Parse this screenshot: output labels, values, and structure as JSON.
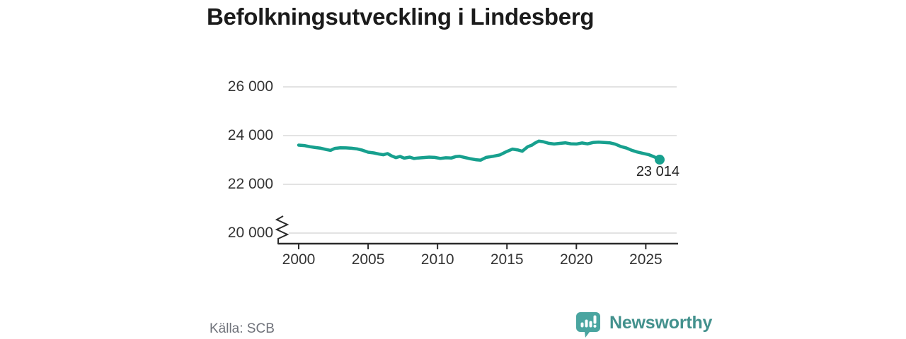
{
  "title": "Befolkningsutveckling i Lindesberg",
  "source_note": "Källa: SCB",
  "brand": {
    "wordmark": "Newsworthy"
  },
  "colors": {
    "line": "#17a08e",
    "gridline": "#e3e3e3",
    "axis_line": "#2b2b2b",
    "axis_text": "#333333",
    "title_text": "#1b1b1b",
    "muted_text": "#6f727a",
    "brand_icon": "#4aa5a0",
    "brand_text": "#43918d"
  },
  "chart_data": {
    "type": "line",
    "title": "Befolkningsutveckling i Lindesberg",
    "xlabel": "",
    "ylabel": "",
    "grid": "horizontal",
    "legend": "none",
    "axis_break_at_bottom": true,
    "xlim": [
      2000,
      2026
    ],
    "ylim": [
      20000,
      26000
    ],
    "x_ticks": [
      {
        "value": 2000,
        "label": "2000"
      },
      {
        "value": 2005,
        "label": "2005"
      },
      {
        "value": 2010,
        "label": "2010"
      },
      {
        "value": 2015,
        "label": "2015"
      },
      {
        "value": 2020,
        "label": "2020"
      },
      {
        "value": 2025,
        "label": "2025"
      }
    ],
    "y_ticks": [
      {
        "value": 26000,
        "label": "26 000"
      },
      {
        "value": 24000,
        "label": "24 000"
      },
      {
        "value": 22000,
        "label": "22 000"
      },
      {
        "value": 20000,
        "label": "20 000"
      }
    ],
    "line_color": "#17a08e",
    "series": [
      {
        "name": "Lindesberg",
        "points": [
          [
            2000.0,
            23610
          ],
          [
            2000.4,
            23590
          ],
          [
            2000.8,
            23545
          ],
          [
            2001.2,
            23510
          ],
          [
            2001.6,
            23480
          ],
          [
            2002.0,
            23425
          ],
          [
            2002.3,
            23395
          ],
          [
            2002.6,
            23475
          ],
          [
            2003.0,
            23500
          ],
          [
            2003.4,
            23495
          ],
          [
            2003.8,
            23480
          ],
          [
            2004.2,
            23455
          ],
          [
            2004.6,
            23400
          ],
          [
            2005.0,
            23320
          ],
          [
            2005.4,
            23290
          ],
          [
            2005.8,
            23240
          ],
          [
            2006.1,
            23215
          ],
          [
            2006.4,
            23260
          ],
          [
            2006.7,
            23165
          ],
          [
            2007.0,
            23095
          ],
          [
            2007.3,
            23145
          ],
          [
            2007.6,
            23075
          ],
          [
            2008.0,
            23115
          ],
          [
            2008.3,
            23060
          ],
          [
            2008.6,
            23080
          ],
          [
            2009.0,
            23100
          ],
          [
            2009.4,
            23115
          ],
          [
            2009.8,
            23105
          ],
          [
            2010.2,
            23065
          ],
          [
            2010.6,
            23090
          ],
          [
            2011.0,
            23080
          ],
          [
            2011.3,
            23135
          ],
          [
            2011.6,
            23150
          ],
          [
            2012.0,
            23095
          ],
          [
            2012.4,
            23045
          ],
          [
            2012.8,
            23005
          ],
          [
            2013.1,
            22990
          ],
          [
            2013.5,
            23105
          ],
          [
            2014.0,
            23150
          ],
          [
            2014.5,
            23210
          ],
          [
            2015.0,
            23350
          ],
          [
            2015.4,
            23445
          ],
          [
            2015.8,
            23410
          ],
          [
            2016.1,
            23360
          ],
          [
            2016.5,
            23545
          ],
          [
            2016.8,
            23610
          ],
          [
            2017.0,
            23690
          ],
          [
            2017.3,
            23775
          ],
          [
            2017.6,
            23750
          ],
          [
            2018.0,
            23685
          ],
          [
            2018.4,
            23655
          ],
          [
            2018.8,
            23680
          ],
          [
            2019.2,
            23705
          ],
          [
            2019.6,
            23665
          ],
          [
            2020.0,
            23655
          ],
          [
            2020.4,
            23700
          ],
          [
            2020.8,
            23660
          ],
          [
            2021.2,
            23715
          ],
          [
            2021.6,
            23730
          ],
          [
            2022.0,
            23720
          ],
          [
            2022.4,
            23705
          ],
          [
            2022.8,
            23650
          ],
          [
            2023.2,
            23555
          ],
          [
            2023.6,
            23490
          ],
          [
            2024.0,
            23395
          ],
          [
            2024.4,
            23325
          ],
          [
            2024.8,
            23270
          ],
          [
            2025.2,
            23220
          ],
          [
            2025.6,
            23130
          ],
          [
            2026.0,
            23014
          ]
        ]
      }
    ],
    "last_point": {
      "x": 2026,
      "y": 23014,
      "label": "23 014"
    }
  }
}
